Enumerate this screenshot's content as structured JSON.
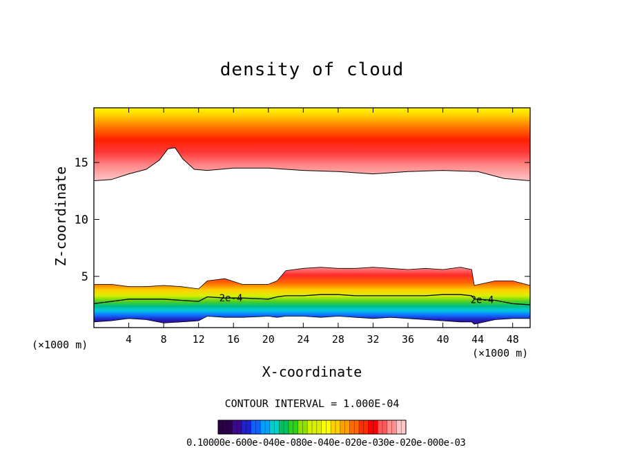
{
  "chart_data": {
    "type": "heatmap",
    "title": "density of cloud",
    "xlabel": "X-coordinate",
    "ylabel": "Z-coordinate",
    "x_unit_left": "(×1000 m)",
    "x_unit_right": "(×1000 m)",
    "xlim": [
      0,
      50
    ],
    "ylim": [
      0.5,
      19.8
    ],
    "x_ticks": [
      4,
      8,
      12,
      16,
      20,
      24,
      28,
      32,
      36,
      40,
      44,
      48
    ],
    "y_ticks": [
      5,
      10,
      15
    ],
    "contour_interval_text": "CONTOUR INTERVAL = 1.000E-04",
    "contour_label": "2e-4",
    "contour_label_x": [
      15.7,
      44.5
    ],
    "upper_layer": {
      "description_values": "cloud-top boundary height (×1000 m) vs x",
      "x": [
        0,
        2,
        4,
        6,
        7.5,
        8.5,
        9.3,
        10.2,
        11.5,
        13,
        16,
        20,
        24,
        28,
        32,
        36,
        40,
        44,
        47,
        50
      ],
      "z": [
        13.4,
        13.5,
        14.0,
        14.4,
        15.2,
        16.2,
        16.3,
        15.3,
        14.4,
        14.3,
        14.5,
        14.5,
        14.3,
        14.2,
        14.0,
        14.2,
        14.3,
        14.2,
        13.6,
        13.4
      ]
    },
    "lower_layer": {
      "x": [
        0,
        2,
        4,
        6,
        8,
        10,
        12,
        13,
        15,
        17,
        20,
        21,
        22,
        24,
        26,
        28,
        30,
        32,
        34,
        36,
        38,
        40,
        42,
        43.3,
        43.6,
        46,
        48,
        50
      ],
      "top_z": [
        4.3,
        4.3,
        4.1,
        4.1,
        4.2,
        4.1,
        3.9,
        4.6,
        4.8,
        4.3,
        4.3,
        4.6,
        5.5,
        5.7,
        5.8,
        5.7,
        5.7,
        5.8,
        5.7,
        5.6,
        5.7,
        5.6,
        5.8,
        5.6,
        4.2,
        4.6,
        4.6,
        4.2
      ],
      "contour_2e4_z": [
        2.6,
        2.8,
        3.0,
        3.0,
        3.0,
        2.9,
        2.8,
        3.2,
        3.1,
        3.1,
        3.0,
        3.2,
        3.3,
        3.3,
        3.4,
        3.4,
        3.3,
        3.3,
        3.3,
        3.3,
        3.3,
        3.4,
        3.4,
        3.3,
        3.0,
        2.9,
        2.6,
        2.5
      ],
      "base_z": [
        1.0,
        1.1,
        1.3,
        1.2,
        0.9,
        1.0,
        1.1,
        1.5,
        1.4,
        1.4,
        1.5,
        1.4,
        1.5,
        1.5,
        1.4,
        1.5,
        1.4,
        1.3,
        1.4,
        1.3,
        1.2,
        1.1,
        1.0,
        1.0,
        0.8,
        1.2,
        1.3,
        1.3
      ]
    },
    "colorbar": {
      "range": [
        0.0001,
        0.0003
      ],
      "label_text": "0.10000e-600e-040e-080e-040e-020e-030e-020e-000e-03",
      "segments": 40
    },
    "colors": {
      "background": "#ffffff",
      "axis": "#000000",
      "max": "#ff0000",
      "palette": [
        "#2a0048",
        "#3b0a8c",
        "#2020d0",
        "#1060ff",
        "#00a0ff",
        "#00d0c8",
        "#00c060",
        "#30d020",
        "#90e000",
        "#d8f000",
        "#ffff00",
        "#ffd000",
        "#ffa000",
        "#ff6a00",
        "#ff3000",
        "#ff0000",
        "#ff5a5a",
        "#ff9090",
        "#ffc8c8"
      ]
    }
  }
}
